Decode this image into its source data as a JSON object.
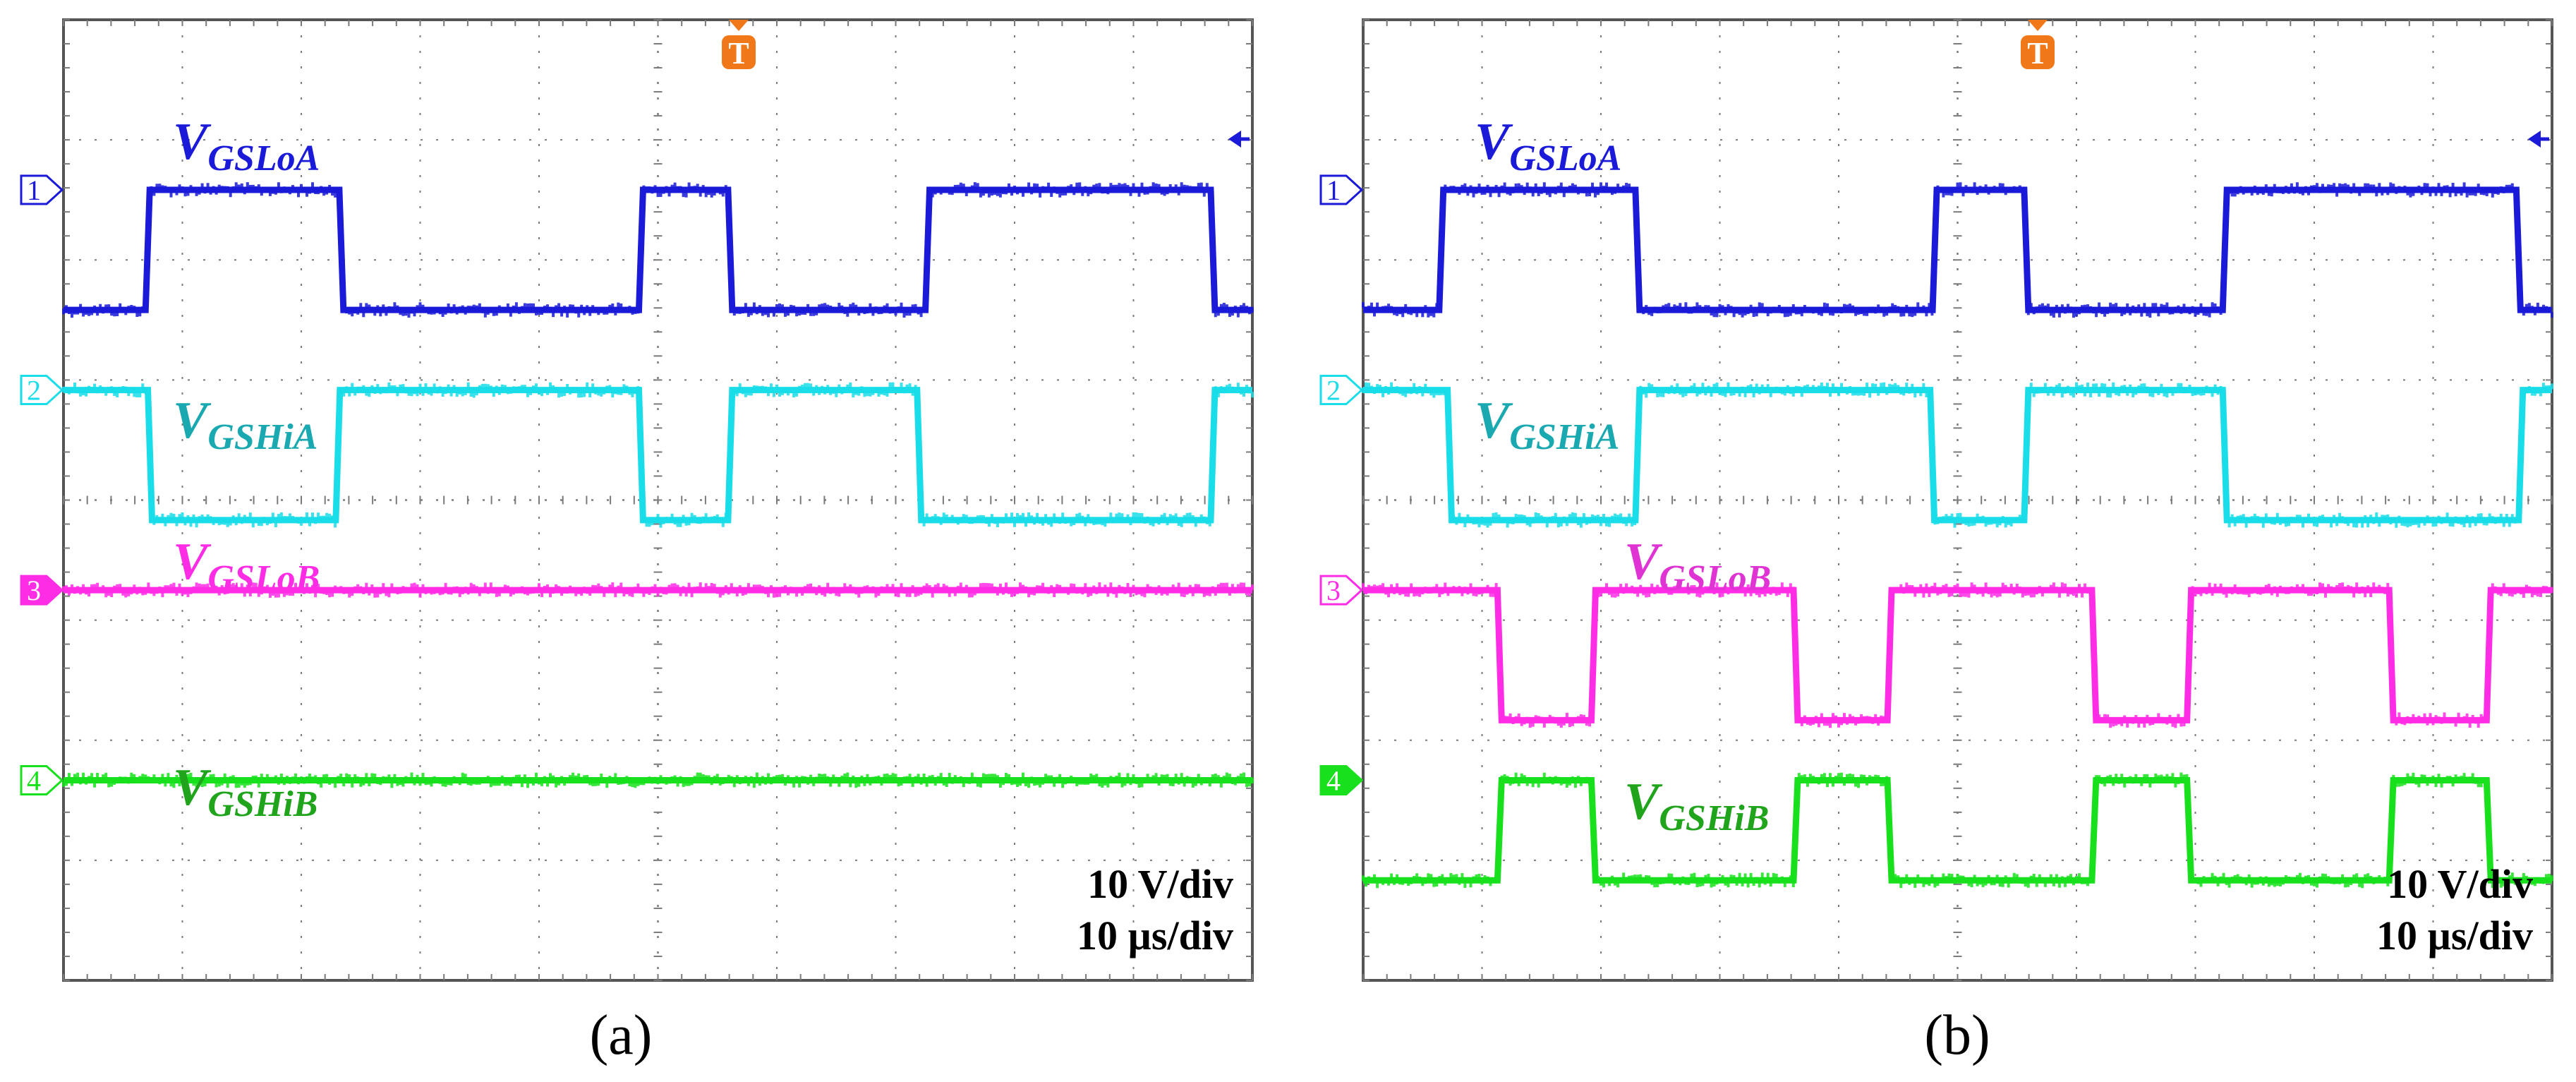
{
  "colors": {
    "ch1": "#1a1ad8",
    "ch2": "#19dde8",
    "ch2_label": "#1aa9b0",
    "ch3": "#ff2ce6",
    "ch3_label_b": "#e033d4",
    "ch4": "#18e01c",
    "ch4_label": "#1fa41c",
    "trigger": "#f07818",
    "grid": "#7a7a7a"
  },
  "chart_data": [
    {
      "type": "line",
      "panel": "(a)",
      "x_unit": "µs",
      "x_range": [
        0,
        100
      ],
      "y_unit": "V",
      "scale_text": [
        "10 V/div",
        "10 µs/div"
      ],
      "grid": true,
      "series": [
        {
          "name": "V_GSLoA",
          "label_main": "V",
          "label_sub": "GSLoA",
          "marker": "1",
          "marker_filled": false,
          "ground_div": 1.7,
          "high_div": 2.9,
          "low_div": 1.7,
          "first_high": true,
          "edges": [
            6.9,
            23.2,
            48.4,
            55.9,
            72.5,
            96.5
          ]
        },
        {
          "name": "V_GSHiA",
          "label_main": "V",
          "label_sub": "GSHiA",
          "marker": "2",
          "marker_filled": false,
          "ground_div": 3.7,
          "high_div": 5.0,
          "low_div": 3.7,
          "first_high": false,
          "edges": [
            7.1,
            22.9,
            48.4,
            55.9,
            71.8,
            96.5
          ]
        },
        {
          "name": "V_GSLoB",
          "label_main": "V",
          "label_sub": "GSLoB",
          "marker": "3",
          "marker_filled": true,
          "ground_div": 5.7,
          "high_div": 5.7,
          "low_div": 5.7,
          "first_high": false,
          "edges": []
        },
        {
          "name": "V_GSHiB",
          "label_main": "V",
          "label_sub": "GSHiB",
          "marker": "4",
          "marker_filled": false,
          "ground_div": 7.6,
          "high_div": 7.6,
          "low_div": 7.6,
          "first_high": false,
          "edges": []
        }
      ]
    },
    {
      "type": "line",
      "panel": "(b)",
      "x_unit": "µs",
      "x_range": [
        0,
        100
      ],
      "y_unit": "V",
      "scale_text": [
        "10 V/div",
        "10 µs/div"
      ],
      "grid": true,
      "series": [
        {
          "name": "V_GSLoA",
          "label_main": "V",
          "label_sub": "GSLoA",
          "marker": "1",
          "marker_filled": false,
          "ground_div": 1.7,
          "high_div": 2.9,
          "low_div": 1.7,
          "first_high": true,
          "edges": [
            6.4,
            22.9,
            47.9,
            55.6,
            72.3,
            97.0
          ]
        },
        {
          "name": "V_GSHiA",
          "label_main": "V",
          "label_sub": "GSHiA",
          "marker": "2",
          "marker_filled": false,
          "ground_div": 3.7,
          "high_div": 5.0,
          "low_div": 3.7,
          "first_high": false,
          "edges": [
            7.1,
            22.9,
            47.7,
            55.6,
            72.3,
            97.2
          ]
        },
        {
          "name": "V_GSLoB",
          "label_main": "V",
          "label_sub": "GSLoB",
          "marker": "3",
          "marker_filled": false,
          "ground_div": 5.7,
          "high_div": 7.0,
          "low_div": 5.7,
          "first_high": false,
          "edges": [
            11.3,
            19.2,
            36.2,
            44.1,
            61.3,
            69.3,
            86.3,
            94.5
          ]
        },
        {
          "name": "V_GSHiB",
          "label_main": "V",
          "label_sub": "GSHiB",
          "marker": "4",
          "marker_filled": true,
          "ground_div": 7.6,
          "high_div": 8.6,
          "low_div": 7.6,
          "first_high": true,
          "edges": [
            11.3,
            19.2,
            36.2,
            44.1,
            61.3,
            69.3,
            86.3,
            94.5
          ]
        }
      ]
    }
  ],
  "captions": [
    "(a)",
    "(b)"
  ],
  "trigger_label": "T"
}
